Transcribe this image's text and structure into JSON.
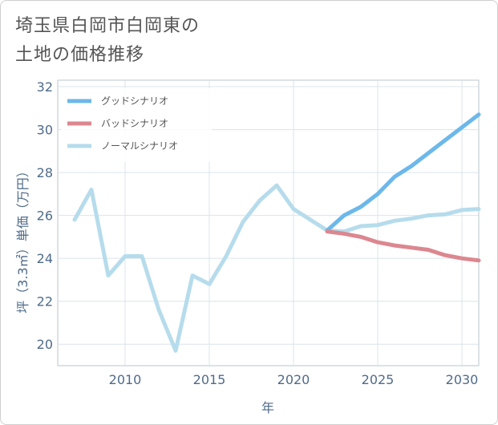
{
  "title_lines": [
    "埼玉県白岡市白岡東の",
    "土地の価格推移"
  ],
  "chart_data": {
    "type": "line",
    "title": "埼玉県白岡市白岡東の土地の価格推移",
    "xlabel": "年",
    "ylabel": "坪（3.3㎡）単価（万円）",
    "xlim": [
      2006,
      2031
    ],
    "ylim": [
      19,
      32.3
    ],
    "x_ticks": [
      2010,
      2015,
      2020,
      2025,
      2030
    ],
    "y_ticks": [
      20,
      22,
      24,
      26,
      28,
      30,
      32
    ],
    "grid": true,
    "legend_position": "top-left",
    "series": [
      {
        "name": "グッドシナリオ",
        "color": "#6cb8ea",
        "x": [
          2022,
          2023,
          2024,
          2025,
          2026,
          2027,
          2028,
          2029,
          2030,
          2031
        ],
        "values": [
          25.3,
          26.0,
          26.4,
          27.0,
          27.8,
          28.3,
          28.9,
          29.5,
          30.1,
          30.7
        ]
      },
      {
        "name": "バッドシナリオ",
        "color": "#dc8790",
        "x": [
          2022,
          2023,
          2024,
          2025,
          2026,
          2027,
          2028,
          2029,
          2030,
          2031
        ],
        "values": [
          25.25,
          25.15,
          25.0,
          24.75,
          24.6,
          24.5,
          24.4,
          24.15,
          24.0,
          23.9
        ]
      },
      {
        "name": "ノーマルシナリオ",
        "color": "#b6dcec",
        "x": [
          2007,
          2008,
          2009,
          2010,
          2011,
          2012,
          2013,
          2014,
          2015,
          2016,
          2017,
          2018,
          2019,
          2020,
          2021,
          2022,
          2023,
          2024,
          2025,
          2026,
          2027,
          2028,
          2029,
          2030,
          2031
        ],
        "values": [
          25.8,
          27.2,
          23.2,
          24.1,
          24.1,
          21.6,
          19.7,
          23.2,
          22.8,
          24.1,
          25.7,
          26.7,
          27.4,
          26.3,
          25.8,
          25.3,
          25.25,
          25.5,
          25.55,
          25.75,
          25.85,
          26.0,
          26.05,
          26.25,
          26.3
        ]
      }
    ]
  }
}
